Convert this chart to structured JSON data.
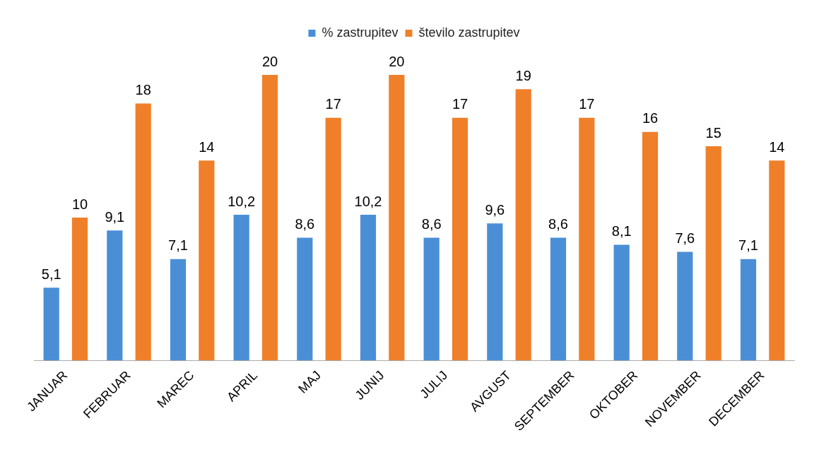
{
  "chart_data": {
    "type": "bar",
    "categories": [
      "JANUAR",
      "FEBRUAR",
      "MAREC",
      "APRIL",
      "MAJ",
      "JUNIJ",
      "JULIJ",
      "AVGUST",
      "SEPTEMBER",
      "OKTOBER",
      "NOVEMBER",
      "DECEMBER"
    ],
    "series": [
      {
        "name": "% zastrupitev",
        "color": "#4a8fd6",
        "values": [
          5.1,
          9.1,
          7.1,
          10.2,
          8.6,
          10.2,
          8.6,
          9.6,
          8.6,
          8.1,
          7.6,
          7.1
        ],
        "value_labels": [
          "5,1",
          "9,1",
          "7,1",
          "10,2",
          "8,6",
          "10,2",
          "8,6",
          "9,6",
          "8,6",
          "8,1",
          "7,6",
          "7,1"
        ]
      },
      {
        "name": "število zastrupitev",
        "color": "#f07f2a",
        "values": [
          10,
          18,
          14,
          20,
          17,
          20,
          17,
          19,
          17,
          16,
          15,
          14
        ],
        "value_labels": [
          "10",
          "18",
          "14",
          "20",
          "17",
          "20",
          "17",
          "19",
          "17",
          "16",
          "15",
          "14"
        ]
      }
    ],
    "legend": "top"
  }
}
